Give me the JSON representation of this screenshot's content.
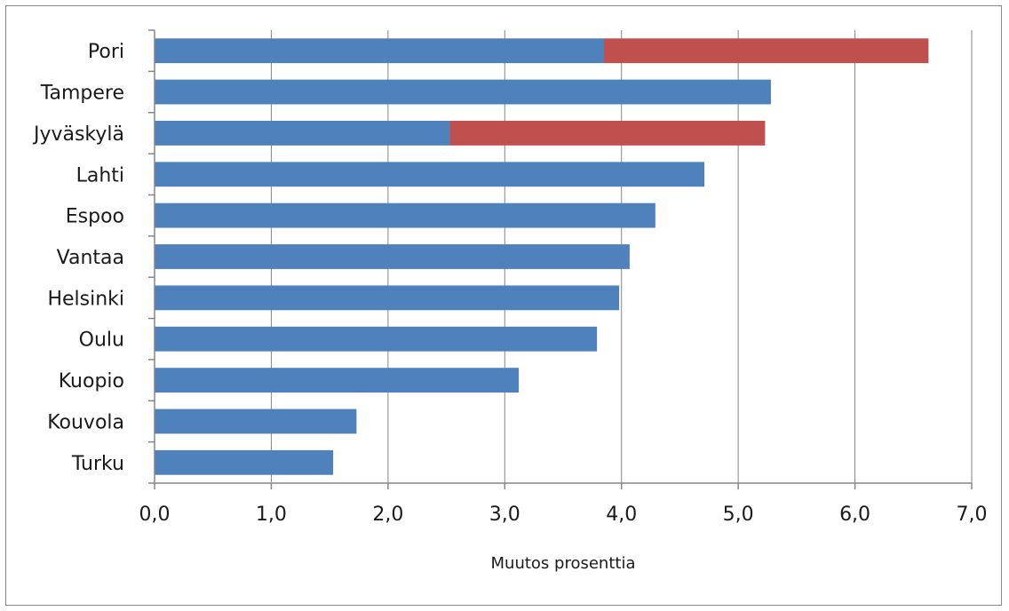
{
  "chart_data": {
    "type": "bar",
    "orientation": "horizontal",
    "stacked": true,
    "categories": [
      "Pori",
      "Tampere",
      "Jyväskylä",
      "Lahti",
      "Espoo",
      "Vantaa",
      "Helsinki",
      "Oulu",
      "Kuopio",
      "Kouvola",
      "Turku"
    ],
    "series": [
      {
        "color": "#4f81bd",
        "values": [
          3.85,
          5.28,
          2.53,
          4.71,
          4.29,
          4.07,
          3.98,
          3.79,
          3.12,
          1.73,
          1.53
        ]
      },
      {
        "color": "#c0504d",
        "values": [
          2.78,
          0,
          2.7,
          0,
          0,
          0,
          0,
          0,
          0,
          0,
          0
        ]
      }
    ],
    "xlabel": "Muutos prosenttia",
    "xlim": [
      0,
      7
    ],
    "xticks": [
      "0,0",
      "1,0",
      "2,0",
      "3,0",
      "4,0",
      "5,0",
      "6,0",
      "7,0"
    ],
    "grid": true
  }
}
